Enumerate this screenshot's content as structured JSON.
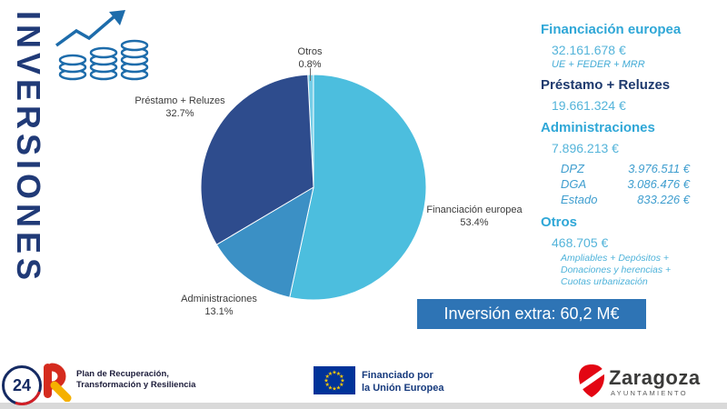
{
  "page": {
    "title_vertical": "INVERSIONES"
  },
  "chart_data": {
    "type": "pie",
    "unit": "percent",
    "start_angle_deg": -92.9,
    "direction": "clockwise",
    "slices": [
      {
        "id": "otros",
        "label": "Otros",
        "pct_label": "0.8%",
        "value_pct": 0.8,
        "color": "#74cde7"
      },
      {
        "id": "financiacion-europea",
        "label": "Financiación europea",
        "pct_label": "53.4%",
        "value_pct": 53.4,
        "color": "#4cbede"
      },
      {
        "id": "administraciones",
        "label": "Administraciones",
        "pct_label": "13.1%",
        "value_pct": 13.1,
        "color": "#3b90c5"
      },
      {
        "id": "prestamo-reluzes",
        "label": "Préstamo + Reluzes",
        "pct_label": "32.7%",
        "value_pct": 32.7,
        "color": "#2e4c8d"
      }
    ]
  },
  "panel": {
    "sections": [
      {
        "heading": "Financiación europea",
        "value": "32.161.678 €",
        "note": "UE + FEDER + MRR"
      },
      {
        "heading": "Préstamo + Reluzes",
        "value": "19.661.324 €"
      },
      {
        "heading": "Administraciones",
        "value": "7.896.213 €",
        "breakdown": [
          {
            "label": "DPZ",
            "value": "3.976.511 €"
          },
          {
            "label": "DGA",
            "value": "3.086.476 €"
          },
          {
            "label": "Estado",
            "value": "833.226 €"
          }
        ]
      },
      {
        "heading": "Otros",
        "value": "468.705 €",
        "notes": [
          "Ampliables + Depósitos +",
          "Donaciones y herencias +",
          "Cuotas urbanización"
        ]
      }
    ],
    "banner": "Inversión extra: 60,2 M€"
  },
  "footer": {
    "channel_badge": "24",
    "plan": {
      "line1": "Plan de Recuperación,",
      "line2": "Transformación y Resiliencia"
    },
    "eu": {
      "line1": "Financiado por",
      "line2": "la Unión Europea"
    },
    "zaragoza": {
      "name": "Zaragoza",
      "sub": "AYUNTAMIENTO"
    }
  },
  "colors": {
    "accent_cyan": "#2fa7d7",
    "navy": "#1e3a6e",
    "value_blue": "#54b4da",
    "banner_blue": "#2e74b5",
    "eu_blue": "#003399",
    "star_yellow": "#ffcc00",
    "plan_red": "#d52b1e",
    "plan_yellow": "#f5b000",
    "zaragoza_red": "#e30613",
    "title_navy": "#203a77"
  }
}
